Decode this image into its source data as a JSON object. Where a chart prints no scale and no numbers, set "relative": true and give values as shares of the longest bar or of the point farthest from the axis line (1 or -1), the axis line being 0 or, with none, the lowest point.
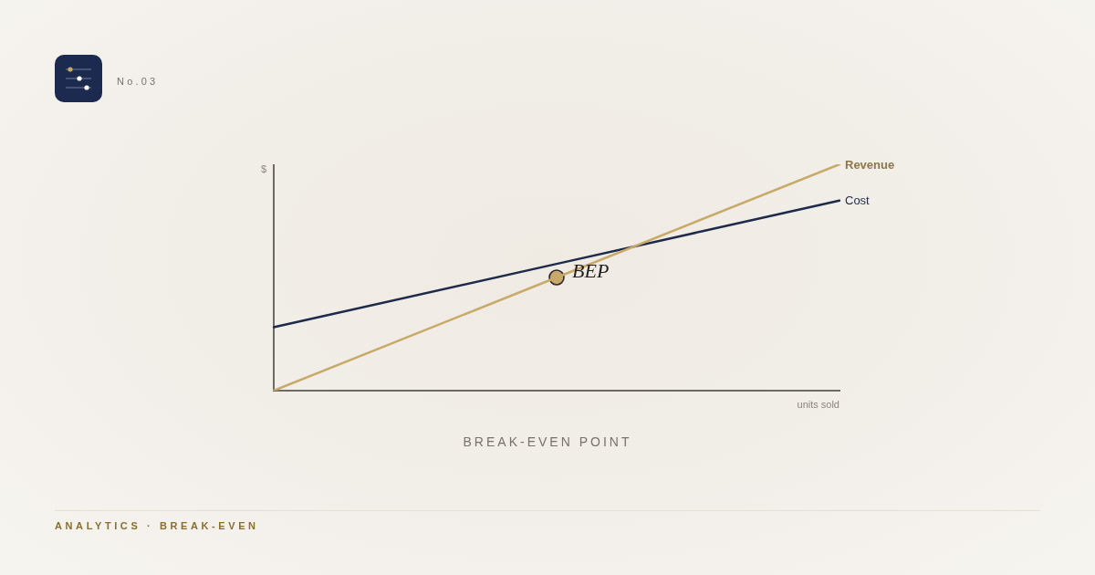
{
  "chart_data": {
    "type": "line",
    "relative": true,
    "title": "BREAK-EVEN POINT",
    "xlabel": "units sold",
    "ylabel": "$",
    "categories": [
      null,
      null,
      null
    ],
    "series": [
      {
        "name": "Revenue",
        "color": "#c8a96a",
        "values": [
          0,
          0.5,
          1
        ]
      },
      {
        "name": "Cost",
        "color": "#1e2a4a",
        "values": [
          0.28,
          0.56,
          0.84
        ]
      },
      {
        "marker": "circle",
        "color": "#c8a96a",
        "values": [
          null,
          0.5,
          null
        ]
      }
    ],
    "annotations": [
      "No.03",
      "BEP",
      "ANALYTICS · BREAK-EVEN"
    ],
    "legend": false,
    "grid": false,
    "marker": "none",
    "tick_labels": false
  }
}
